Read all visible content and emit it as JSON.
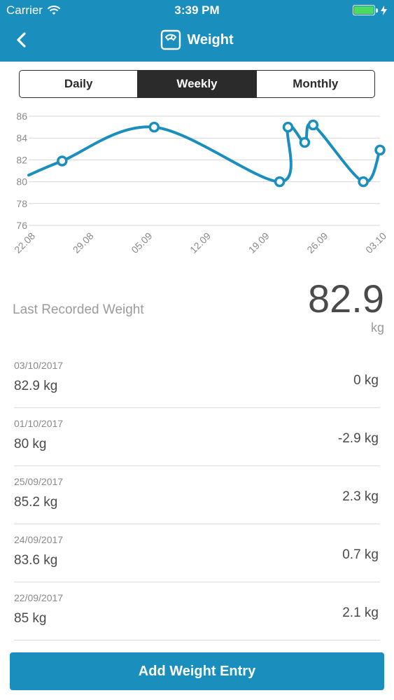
{
  "status_bar": {
    "carrier": "Carrier",
    "time": "3:39 PM"
  },
  "nav": {
    "title": "Weight",
    "back_icon": "chevron-left-icon",
    "title_icon": "scale-icon"
  },
  "tabs": [
    {
      "label": "Daily",
      "active": false
    },
    {
      "label": "Weekly",
      "active": true
    },
    {
      "label": "Monthly",
      "active": false
    }
  ],
  "chart_data": {
    "type": "line",
    "color": "#1a8fbd",
    "ylim": [
      76,
      86
    ],
    "yticks": [
      86,
      84,
      82,
      80,
      78,
      76
    ],
    "xticks": [
      "22.08",
      "29.08",
      "05.09",
      "12.09",
      "19.09",
      "26.09",
      "03.10"
    ],
    "series": [
      {
        "points": [
          {
            "x": "2017-08-22",
            "y": 80.6,
            "marker": false
          },
          {
            "x": "2017-08-26",
            "y": 81.9,
            "marker": true
          },
          {
            "x": "2017-09-06",
            "y": 85.0,
            "marker": true
          },
          {
            "x": "2017-09-21",
            "y": 80.0,
            "marker": true
          },
          {
            "x": "2017-09-22",
            "y": 85.0,
            "marker": true
          },
          {
            "x": "2017-09-24",
            "y": 83.6,
            "marker": true
          },
          {
            "x": "2017-09-25",
            "y": 85.2,
            "marker": true
          },
          {
            "x": "2017-10-01",
            "y": 80.0,
            "marker": true
          },
          {
            "x": "2017-10-03",
            "y": 82.9,
            "marker": true
          }
        ]
      }
    ],
    "grid": true
  },
  "summary": {
    "label": "Last Recorded Weight",
    "value": "82.9",
    "unit": "kg"
  },
  "entries": [
    {
      "date": "03/10/2017",
      "weight": "82.9 kg",
      "delta": "0 kg"
    },
    {
      "date": "01/10/2017",
      "weight": "80 kg",
      "delta": "-2.9 kg"
    },
    {
      "date": "25/09/2017",
      "weight": "85.2 kg",
      "delta": "2.3 kg"
    },
    {
      "date": "24/09/2017",
      "weight": "83.6 kg",
      "delta": "0.7 kg"
    },
    {
      "date": "22/09/2017",
      "weight": "85 kg",
      "delta": "2.1 kg"
    }
  ],
  "add_button": {
    "label": "Add Weight Entry"
  }
}
